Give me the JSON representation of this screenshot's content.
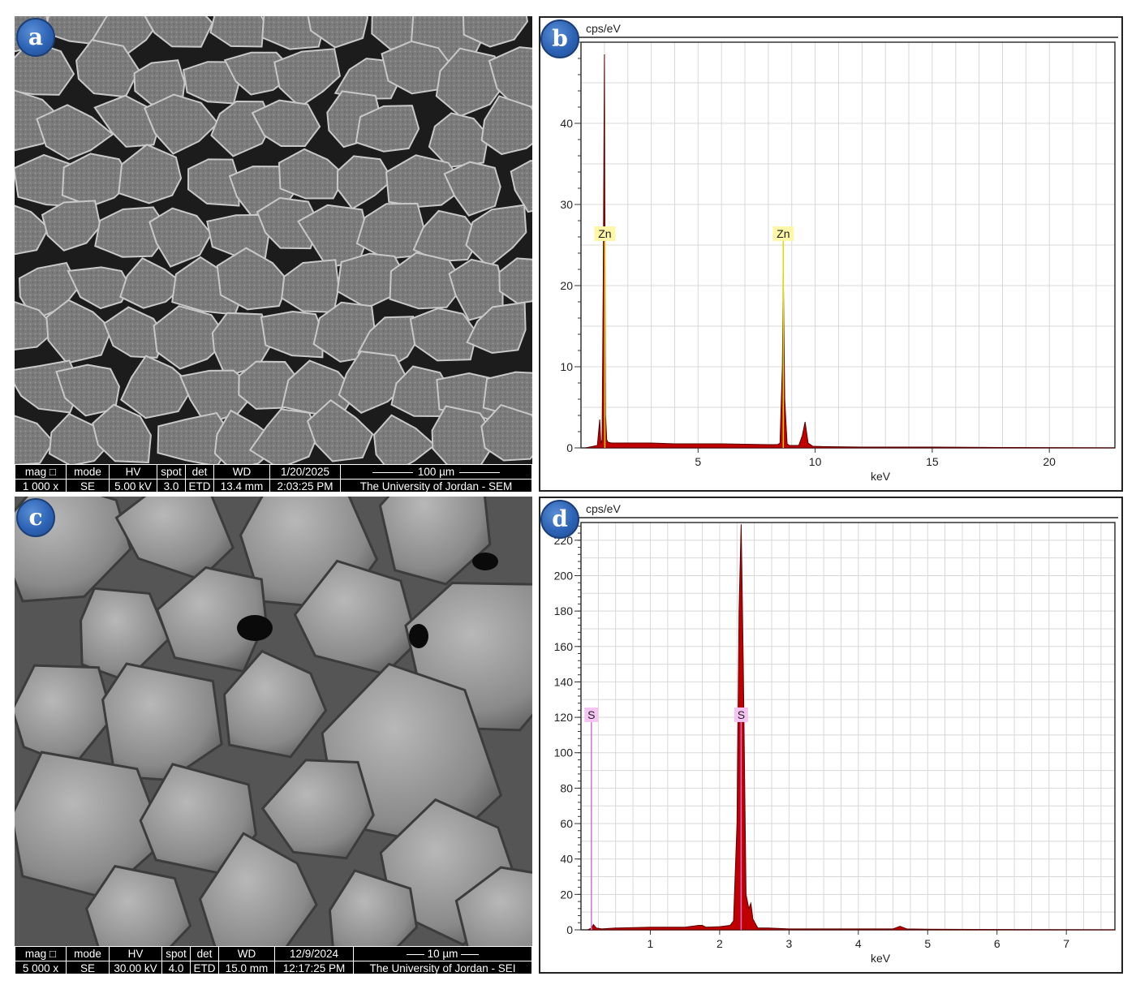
{
  "panels": {
    "a": {
      "label": "a",
      "databar": {
        "headers": [
          "mag □",
          "mode",
          "HV",
          "spot",
          "det",
          "WD",
          "1/20/2025",
          "100 µm"
        ],
        "values": [
          "1 000 x",
          "SE",
          "5.00 kV",
          "3.0",
          "ETD",
          "13.4 mm",
          "2:03:25 PM",
          "The University of Jordan - SEM"
        ]
      }
    },
    "b": {
      "label": "b",
      "y_unit": "cps/eV",
      "x_unit": "keV"
    },
    "c": {
      "label": "c",
      "databar": {
        "headers": [
          "mag □",
          "mode",
          "HV",
          "spot",
          "det",
          "WD",
          "12/9/2024",
          "10 µm"
        ],
        "values": [
          "5 000 x",
          "SE",
          "30.00 kV",
          "4.0",
          "ETD",
          "15.0 mm",
          "12:17:25 PM",
          "The University of Jordan - SEI"
        ]
      }
    },
    "d": {
      "label": "d",
      "y_unit": "cps/eV",
      "x_unit": "keV"
    }
  },
  "chart_data": [
    {
      "type": "line",
      "panel": "b",
      "title": "",
      "xlabel": "keV",
      "ylabel": "cps/eV",
      "xlim": [
        0,
        22.8
      ],
      "ylim": [
        0,
        50
      ],
      "xticks": [
        5,
        10,
        15,
        20
      ],
      "yticks": [
        0,
        10,
        20,
        30,
        40
      ],
      "grid": true,
      "fill_color": "#c00000",
      "series": [
        {
          "x": [
            0.2,
            0.7,
            0.8,
            0.85,
            0.9,
            0.95,
            1.0,
            1.02,
            1.05,
            1.1,
            1.15,
            1.3,
            2.0,
            3.0,
            4.0,
            5.0,
            6.0,
            7.0,
            8.0,
            8.4,
            8.5,
            8.6,
            8.64,
            8.7,
            8.8,
            8.9,
            9.3,
            9.45,
            9.57,
            9.7,
            9.9,
            10.5,
            12,
            15,
            18,
            22.8
          ],
          "y": [
            0,
            0.3,
            3.5,
            0.5,
            1.0,
            20,
            48.5,
            30,
            4,
            1.0,
            0.7,
            0.6,
            0.6,
            0.6,
            0.5,
            0.5,
            0.5,
            0.45,
            0.4,
            0.4,
            0.6,
            10,
            21.5,
            6,
            0.5,
            0.3,
            0.3,
            1.5,
            3.2,
            0.6,
            0.2,
            0.15,
            0.1,
            0.1,
            0.05,
            0
          ]
        }
      ],
      "peak_labels": [
        {
          "text": "Zn",
          "x": 1.02
        },
        {
          "text": "Zn",
          "x": 8.64
        }
      ]
    },
    {
      "type": "line",
      "panel": "d",
      "title": "",
      "xlabel": "keV",
      "ylabel": "cps/eV",
      "xlim": [
        0,
        7.7
      ],
      "ylim": [
        0,
        230
      ],
      "xticks": [
        1,
        2,
        3,
        4,
        5,
        6,
        7
      ],
      "yticks": [
        0,
        20,
        40,
        60,
        80,
        100,
        120,
        140,
        160,
        180,
        200,
        220
      ],
      "grid": true,
      "fill_color": "#c00000",
      "series": [
        {
          "x": [
            0.1,
            0.15,
            0.18,
            0.22,
            0.3,
            0.5,
            1.0,
            1.5,
            1.7,
            1.75,
            1.8,
            2.0,
            2.15,
            2.2,
            2.25,
            2.28,
            2.31,
            2.34,
            2.38,
            2.42,
            2.45,
            2.48,
            2.55,
            2.7,
            3.0,
            4.0,
            4.5,
            4.6,
            4.7,
            5.0,
            6.0,
            7.7
          ],
          "y": [
            0,
            1,
            3,
            1,
            0.5,
            1,
            1.5,
            1.5,
            2.5,
            2.5,
            1.5,
            1.8,
            2.5,
            5,
            60,
            180,
            229,
            150,
            20,
            12,
            15,
            6,
            1,
            1,
            0.5,
            0.5,
            0.5,
            2,
            0.5,
            0.3,
            0.2,
            0
          ]
        }
      ],
      "peak_labels": [
        {
          "text": "S",
          "x": 0.15
        },
        {
          "text": "S",
          "x": 2.31
        }
      ]
    }
  ]
}
